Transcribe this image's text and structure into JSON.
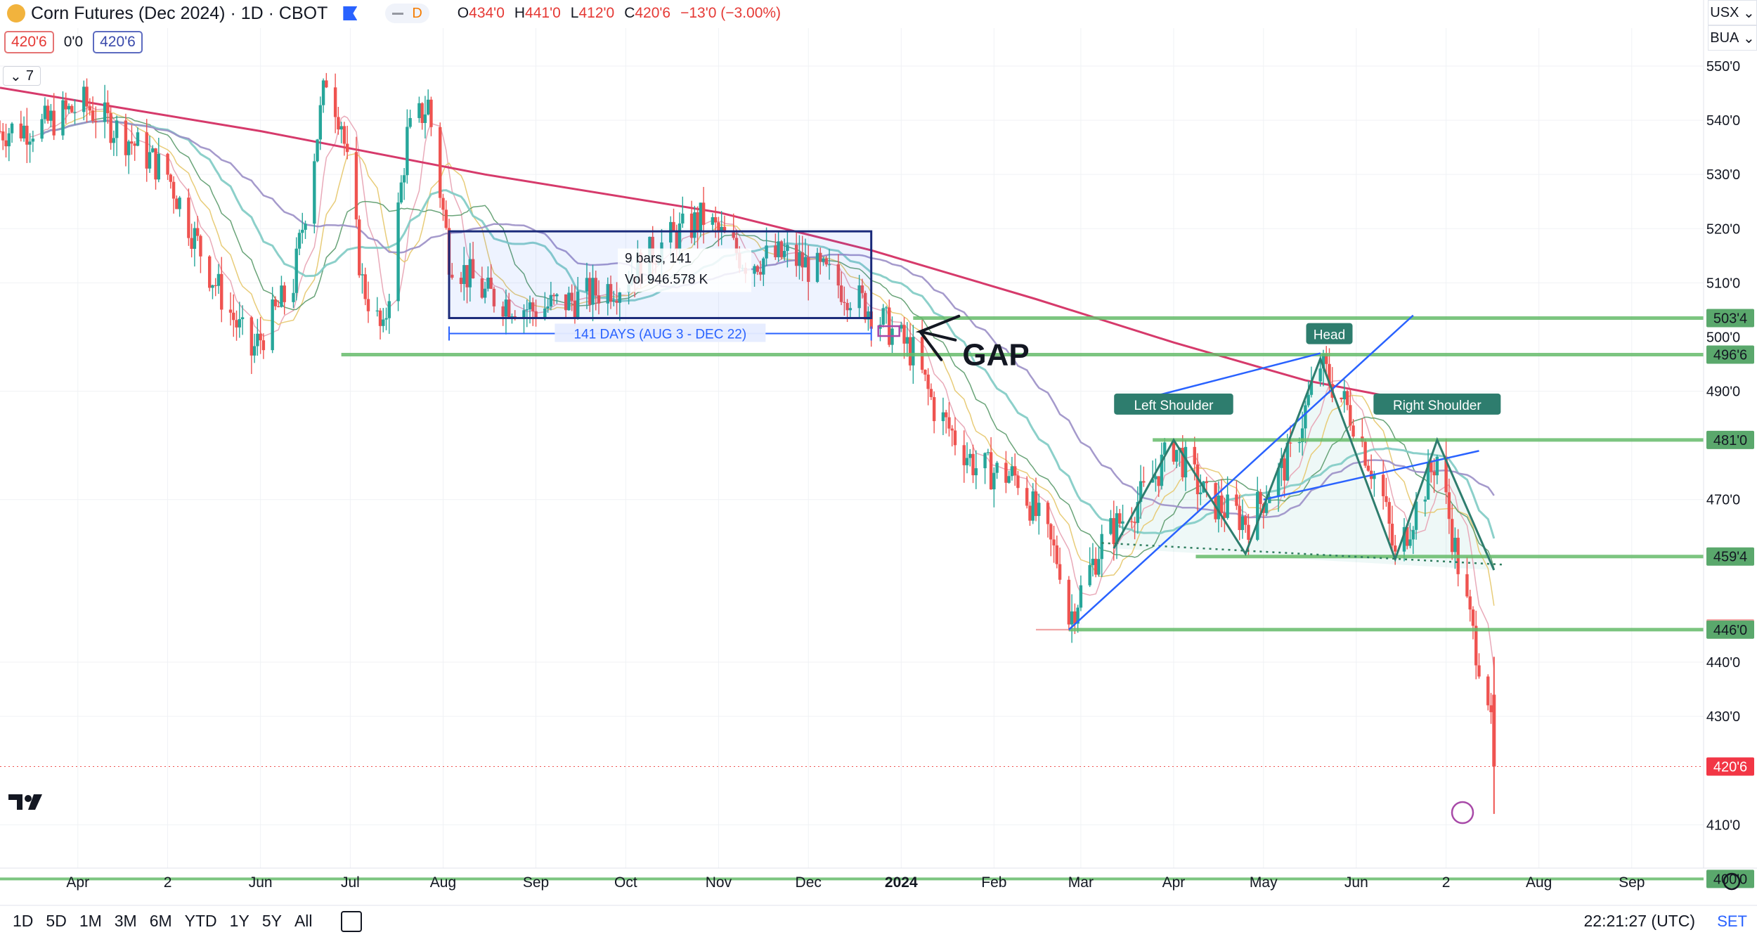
{
  "header": {
    "title": "Corn Futures (Dec 2024) · 1D · CBOT",
    "interval_badge": "D",
    "ohlc": {
      "o_label": "O",
      "o": "434'0",
      "h_label": "H",
      "h": "441'0",
      "l_label": "L",
      "l": "412'0",
      "c_label": "C",
      "c": "420'6",
      "change": "−13'0 (−3.00%)"
    },
    "bid": "420'6",
    "spread": "0'0",
    "ask": "420'6",
    "indicators_count": "7"
  },
  "top_right": {
    "currency": "USX",
    "unit": "BUA"
  },
  "toolbar": {
    "timeframes": [
      "1D",
      "5D",
      "1M",
      "3M",
      "6M",
      "YTD",
      "1Y",
      "5Y",
      "All"
    ],
    "clock": "22:21:27 (UTC)",
    "settings_label": "SET"
  },
  "colors": {
    "up": "#26a69a",
    "down": "#ef5350",
    "ma200": "#d63a6b",
    "ma_purple": "#9b8fc7",
    "ma_teal": "#80cbc4",
    "support_line": "#66bb6a",
    "trend_line": "#2962ff"
  },
  "chart_data": {
    "type": "candlestick",
    "y_axis": {
      "range": [
        402,
        557
      ],
      "ticks": [
        "410'0",
        "430'0",
        "440'0",
        "470'0",
        "490'0",
        "510'0",
        "520'0",
        "530'0",
        "540'0",
        "550'0"
      ],
      "tick_values": [
        410,
        430,
        440,
        470,
        490,
        510,
        520,
        530,
        540,
        550
      ]
    },
    "x_axis": {
      "labels": [
        "Apr",
        "2",
        "Jun",
        "Jul",
        "Aug",
        "Sep",
        "Oct",
        "Nov",
        "Dec",
        "2024",
        "Feb",
        "Mar",
        "Apr",
        "May",
        "Jun",
        "2",
        "Aug",
        "Sep"
      ],
      "label_dates": [
        "2023-04-01",
        "2023-05-01",
        "2023-06-01",
        "2023-07-01",
        "2023-08-01",
        "2023-09-01",
        "2023-10-01",
        "2023-11-01",
        "2023-12-01",
        "2024-01-01",
        "2024-02-01",
        "2024-03-01",
        "2024-04-01",
        "2024-05-01",
        "2024-06-01",
        "2024-07-01",
        "2024-08-01",
        "2024-09-01"
      ],
      "range": [
        "2023-03-06",
        "2024-09-25"
      ]
    },
    "price_levels": [
      {
        "label": "503'4",
        "value": 503.5,
        "role": "support"
      },
      {
        "label": "500'0",
        "value": 500.0,
        "role": "axis"
      },
      {
        "label": "496'6",
        "value": 496.75,
        "role": "support"
      },
      {
        "label": "481'0",
        "value": 481.0,
        "role": "support"
      },
      {
        "label": "459'4",
        "value": 459.5,
        "role": "support"
      },
      {
        "label": "446'2",
        "value": 446.25,
        "role": "marker"
      },
      {
        "label": "446'0",
        "value": 446.0,
        "role": "support"
      },
      {
        "label": "420'6",
        "value": 420.75,
        "role": "last"
      },
      {
        "label": "400'0",
        "value": 400.0,
        "role": "support"
      }
    ],
    "annotations": {
      "range_box": {
        "info_line1": "9 bars, 141",
        "info_line2": "Vol 946.578 K",
        "span_label": "141 DAYS (AUG 3 - DEC 22)",
        "date_start": "2023-08-03",
        "date_end": "2023-12-22",
        "price_low": 503.5,
        "price_high": 519.5
      },
      "gap_label": "GAP",
      "pattern_labels": [
        "Left Shoulder",
        "Head",
        "Right Shoulder"
      ]
    },
    "close_path": [
      [
        "2023-03-06",
        538
      ],
      [
        "2023-03-20",
        539
      ],
      [
        "2023-04-03",
        543
      ],
      [
        "2023-04-17",
        537
      ],
      [
        "2023-05-01",
        530
      ],
      [
        "2023-05-15",
        512
      ],
      [
        "2023-05-29",
        497
      ],
      [
        "2023-06-12",
        510
      ],
      [
        "2023-06-23",
        548
      ],
      [
        "2023-06-28",
        540
      ],
      [
        "2023-07-05",
        510
      ],
      [
        "2023-07-12",
        500
      ],
      [
        "2023-07-20",
        537
      ],
      [
        "2023-07-27",
        543
      ],
      [
        "2023-08-03",
        515
      ],
      [
        "2023-08-15",
        508
      ],
      [
        "2023-08-31",
        505
      ],
      [
        "2023-09-15",
        507
      ],
      [
        "2023-09-29",
        510
      ],
      [
        "2023-10-13",
        517
      ],
      [
        "2023-10-27",
        522
      ],
      [
        "2023-11-10",
        514
      ],
      [
        "2023-11-24",
        515
      ],
      [
        "2023-12-08",
        511
      ],
      [
        "2023-12-22",
        505
      ],
      [
        "2024-01-05",
        497
      ],
      [
        "2024-01-12",
        487
      ],
      [
        "2024-01-26",
        476
      ],
      [
        "2024-02-09",
        474
      ],
      [
        "2024-02-23",
        458
      ],
      [
        "2024-02-26",
        448
      ],
      [
        "2024-03-08",
        462
      ],
      [
        "2024-03-22",
        471
      ],
      [
        "2024-04-01",
        480
      ],
      [
        "2024-04-12",
        470
      ],
      [
        "2024-04-26",
        466
      ],
      [
        "2024-05-10",
        478
      ],
      [
        "2024-05-20",
        495
      ],
      [
        "2024-05-31",
        485
      ],
      [
        "2024-06-10",
        470
      ],
      [
        "2024-06-14",
        459
      ],
      [
        "2024-06-28",
        478
      ],
      [
        "2024-07-05",
        458
      ],
      [
        "2024-07-10",
        445
      ],
      [
        "2024-07-15",
        434
      ],
      [
        "2024-07-17",
        420.75
      ]
    ]
  }
}
